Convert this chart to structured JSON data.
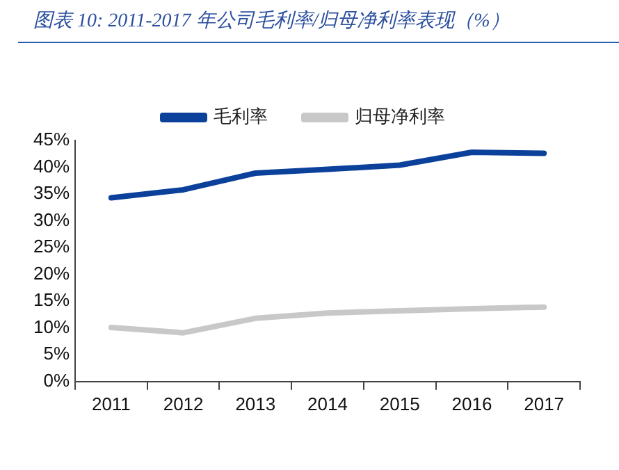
{
  "chart_data": {
    "type": "line",
    "title": "图表 10:  2011-2017 年公司毛利率/归母净利率表现（%）",
    "categories": [
      "2011",
      "2012",
      "2013",
      "2014",
      "2015",
      "2016",
      "2017"
    ],
    "series": [
      {
        "name": "毛利率",
        "color": "#0b419b",
        "values": [
          34.3,
          35.8,
          38.9,
          39.6,
          40.4,
          42.8,
          42.6
        ]
      },
      {
        "name": "归母净利率",
        "color": "#c8c8c8",
        "values": [
          10.1,
          9.1,
          11.8,
          12.8,
          13.2,
          13.6,
          13.9
        ]
      }
    ],
    "ylim": [
      0,
      45
    ],
    "yticks": [
      {
        "value": 0,
        "label": "0%"
      },
      {
        "value": 5,
        "label": "5%"
      },
      {
        "value": 10,
        "label": "10%"
      },
      {
        "value": 15,
        "label": "15%"
      },
      {
        "value": 20,
        "label": "20%"
      },
      {
        "value": 25,
        "label": "25%"
      },
      {
        "value": 30,
        "label": "30%"
      },
      {
        "value": 35,
        "label": "35%"
      },
      {
        "value": 40,
        "label": "40%"
      },
      {
        "value": 45,
        "label": "45%"
      }
    ],
    "grid": false,
    "legend": "top",
    "marker": "none",
    "line_style": "solid"
  }
}
